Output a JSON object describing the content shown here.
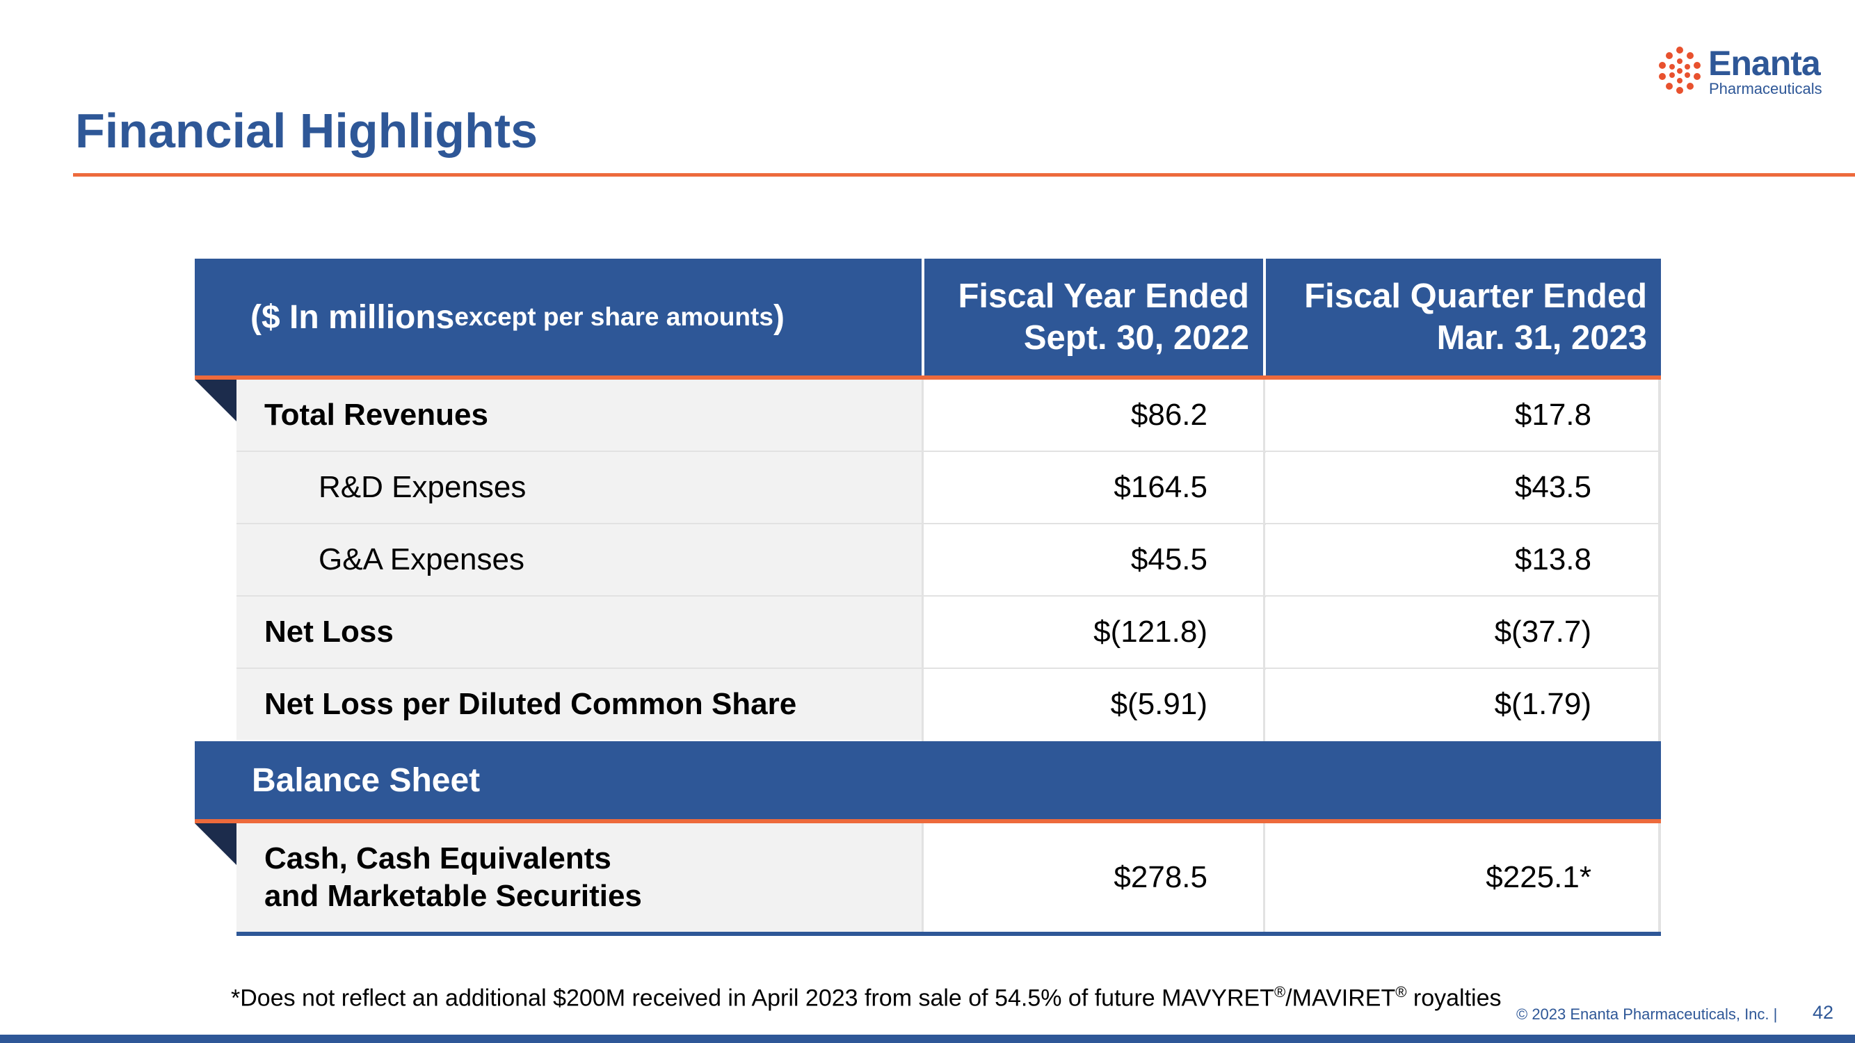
{
  "slide": {
    "title": "Financial Highlights"
  },
  "logo": {
    "name": "Enanta",
    "sub": "Pharmaceuticals"
  },
  "table": {
    "header": {
      "col1_main": "($ In millions ",
      "col1_small": "except per share amounts",
      "col1_close": ")",
      "col2_line1": "Fiscal Year Ended",
      "col2_line2": "Sept. 30, 2022",
      "col3_line1": "Fiscal Quarter Ended",
      "col3_line2": "Mar. 31, 2023"
    },
    "rows": [
      {
        "label": "Total Revenues",
        "fy": "$86.2",
        "fq": "$17.8"
      },
      {
        "label": "R&D Expenses",
        "fy": "$164.5",
        "fq": "$43.5"
      },
      {
        "label": "G&A Expenses",
        "fy": "$45.5",
        "fq": "$13.8"
      },
      {
        "label": "Net Loss",
        "fy": "$(121.8)",
        "fq": "$(37.7)"
      },
      {
        "label": "Net Loss per Diluted Common Share",
        "fy": "$(5.91)",
        "fq": "$(1.79)"
      }
    ],
    "balance_sheet_label": "Balance Sheet",
    "cash_row": {
      "label_line1": "Cash, Cash Equivalents",
      "label_line2": "and Marketable Securities",
      "fy": "$278.5",
      "fq": "$225.1*"
    }
  },
  "footnote": {
    "text_a": "*Does not reflect an additional $200M received in April 2023 from sale of 54.5% of future MAVYRET",
    "reg1": "®",
    "text_b": "/MAVIRET",
    "reg2": "®",
    "text_c": " royalties"
  },
  "footer": {
    "copyright": "© 2023  Enanta Pharmaceuticals, Inc.   |",
    "page": "42"
  },
  "colors": {
    "brand_blue": "#2E5797",
    "accent_orange": "#ED6A3C",
    "dark_navy": "#1C2C4C",
    "row_gray": "#F2F2F2"
  }
}
